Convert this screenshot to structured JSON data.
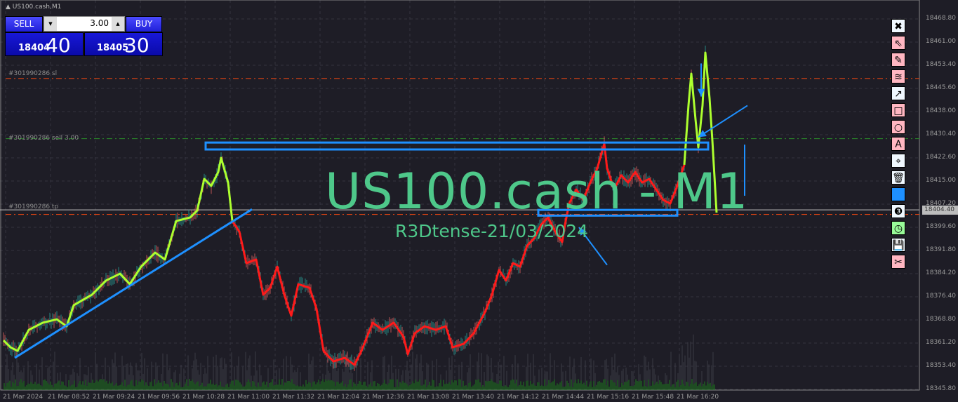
{
  "window": {
    "title": "US100.cash,M1"
  },
  "trade_panel": {
    "sell_label": "SELL",
    "buy_label": "BUY",
    "lot_value": "3.00",
    "bid_small": "18404",
    "bid_big": "40",
    "ask_small": "18405",
    "ask_big": "30"
  },
  "order_lines": {
    "sl_label": "#301990286 sl",
    "sell_label": "#301990286 sell 3.00",
    "tp_label": "#301990286 tp"
  },
  "watermark": {
    "symbol": "US100.cash - M1",
    "author": "R3Dtense-21/03/2024"
  },
  "colors": {
    "background": "#1e1d26",
    "bull_line": "#adff2f",
    "bear_line": "#ff1a1a",
    "drawing": "#1e90ff",
    "sl_tp_line": "#ff4a10",
    "entry_line": "#2a8a2a",
    "watermark": "#4ec88a"
  },
  "toolbar": [
    {
      "icon": "close-icon",
      "glyph": "✖",
      "bg": "#f0f8ff"
    },
    {
      "icon": "cursor-icon",
      "glyph": "⇖",
      "bg": "#ffb6c1"
    },
    {
      "icon": "pencil-icon",
      "glyph": "✎",
      "bg": "#ffb6c1"
    },
    {
      "icon": "wave-icon",
      "glyph": "≋",
      "bg": "#ffb6c1"
    },
    {
      "icon": "arrow-icon",
      "glyph": "↗",
      "bg": "#f0f8ff"
    },
    {
      "icon": "rectangle-icon",
      "glyph": "□",
      "bg": "#ffb6c1"
    },
    {
      "icon": "circle-icon",
      "glyph": "○",
      "bg": "#ffb6c1"
    },
    {
      "icon": "text-icon",
      "glyph": "A",
      "bg": "#ffb6c1"
    },
    {
      "icon": "label-icon",
      "glyph": "⌖",
      "bg": "#f0f8ff"
    },
    {
      "icon": "trash-icon",
      "glyph": "🗑",
      "bg": "#f0f8ff"
    },
    {
      "icon": "color-swatch-icon",
      "glyph": "",
      "bg": "#1e90ff"
    },
    {
      "icon": "line-width-icon",
      "glyph": "❸",
      "bg": "#f0f8ff"
    },
    {
      "icon": "clock-icon",
      "glyph": "◷",
      "bg": "#98fb98"
    },
    {
      "icon": "save-icon",
      "glyph": "💾",
      "bg": "#f0f8ff"
    },
    {
      "icon": "scissors-icon",
      "glyph": "✂",
      "bg": "#ffb6c1"
    }
  ],
  "chart_data": {
    "type": "line",
    "symbol": "US100.cash",
    "timeframe": "M1",
    "date": "21 Mar 2024",
    "ylim": [
      18345.8,
      18468.8
    ],
    "grid": true,
    "y_ticks": [
      "18468.80",
      "18461.00",
      "18453.40",
      "18445.60",
      "18438.00",
      "18430.40",
      "18422.60",
      "18415.00",
      "18407.20",
      "18399.60",
      "18391.80",
      "18384.20",
      "18376.40",
      "18368.80",
      "18361.20",
      "18353.40",
      "18345.80"
    ],
    "x_ticks": [
      "21 Mar 2024",
      "21 Mar 08:52",
      "21 Mar 09:24",
      "21 Mar 09:56",
      "21 Mar 10:28",
      "21 Mar 11:00",
      "21 Mar 11:32",
      "21 Mar 12:04",
      "21 Mar 12:36",
      "21 Mar 13:08",
      "21 Mar 13:40",
      "21 Mar 14:12",
      "21 Mar 14:44",
      "21 Mar 15:16",
      "21 Mar 15:48",
      "21 Mar 16:20"
    ],
    "current_bid": "18404.40",
    "current_ask": "18405.30",
    "levels": {
      "sl": 18449.0,
      "entry": 18429.0,
      "tp": 18403.8
    },
    "segments": [
      {
        "color": "#adff2f",
        "from": "08:20",
        "to": "11:03"
      },
      {
        "color": "#ff1a1a",
        "from": "11:03",
        "to": "16:25"
      },
      {
        "color": "#adff2f",
        "from": "16:25",
        "to": "16:48"
      }
    ],
    "points": [
      [
        "08:20",
        18361.9
      ],
      [
        "08:25",
        18359.6
      ],
      [
        "08:30",
        18358.4
      ],
      [
        "08:38",
        18365.4
      ],
      [
        "08:48",
        18367.8
      ],
      [
        "08:58",
        18368.9
      ],
      [
        "09:05",
        18366.6
      ],
      [
        "09:10",
        18373.6
      ],
      [
        "09:23",
        18377.1
      ],
      [
        "09:33",
        18381.8
      ],
      [
        "09:43",
        18384.1
      ],
      [
        "09:50",
        18380.6
      ],
      [
        "09:58",
        18386.4
      ],
      [
        "10:08",
        18391.1
      ],
      [
        "10:15",
        18388.8
      ],
      [
        "10:23",
        18401.6
      ],
      [
        "10:33",
        18402.8
      ],
      [
        "10:38",
        18405.1
      ],
      [
        "10:43",
        18415.6
      ],
      [
        "10:48",
        18413.3
      ],
      [
        "10:53",
        18417.9
      ],
      [
        "10:55",
        18422.6
      ],
      [
        "11:00",
        18414.4
      ],
      [
        "11:03",
        18401.6
      ],
      [
        "11:08",
        18398.1
      ],
      [
        "11:13",
        18387.6
      ],
      [
        "11:20",
        18388.8
      ],
      [
        "11:25",
        18377.1
      ],
      [
        "11:30",
        18379.4
      ],
      [
        "11:35",
        18386.4
      ],
      [
        "11:40",
        18377.1
      ],
      [
        "11:45",
        18370.1
      ],
      [
        "11:50",
        18380.6
      ],
      [
        "11:58",
        18379.4
      ],
      [
        "12:03",
        18372.4
      ],
      [
        "12:08",
        18358.4
      ],
      [
        "12:15",
        18354.9
      ],
      [
        "12:23",
        18356.1
      ],
      [
        "12:30",
        18353.8
      ],
      [
        "12:35",
        18358.4
      ],
      [
        "12:43",
        18367.8
      ],
      [
        "12:50",
        18365.4
      ],
      [
        "12:58",
        18367.8
      ],
      [
        "13:05",
        18363.1
      ],
      [
        "13:08",
        18357.3
      ],
      [
        "13:13",
        18364.3
      ],
      [
        "13:20",
        18366.6
      ],
      [
        "13:28",
        18365.4
      ],
      [
        "13:35",
        18366.6
      ],
      [
        "13:40",
        18359.6
      ],
      [
        "13:48",
        18360.8
      ],
      [
        "13:55",
        18364.3
      ],
      [
        "14:03",
        18371.3
      ],
      [
        "14:08",
        18377.1
      ],
      [
        "14:13",
        18385.3
      ],
      [
        "14:18",
        18381.8
      ],
      [
        "14:23",
        18387.6
      ],
      [
        "14:28",
        18386.4
      ],
      [
        "14:33",
        18393.4
      ],
      [
        "14:38",
        18395.8
      ],
      [
        "14:43",
        18400.4
      ],
      [
        "14:48",
        18402.8
      ],
      [
        "14:53",
        18398.1
      ],
      [
        "14:58",
        18394.6
      ],
      [
        "15:00",
        18400.4
      ],
      [
        "15:03",
        18407.4
      ],
      [
        "15:08",
        18412.1
      ],
      [
        "15:13",
        18408.6
      ],
      [
        "15:18",
        18414.4
      ],
      [
        "15:23",
        18419.1
      ],
      [
        "15:28",
        18427.3
      ],
      [
        "15:30",
        18419.1
      ],
      [
        "15:35",
        18412.1
      ],
      [
        "15:40",
        18416.8
      ],
      [
        "15:45",
        18414.4
      ],
      [
        "15:50",
        18417.9
      ],
      [
        "15:55",
        18414.4
      ],
      [
        "16:00",
        18415.6
      ],
      [
        "16:05",
        18412.1
      ],
      [
        "16:10",
        18408.6
      ],
      [
        "16:15",
        18407.4
      ],
      [
        "16:20",
        18413.3
      ],
      [
        "16:25",
        18420.3
      ],
      [
        "16:28",
        18440.1
      ],
      [
        "16:30",
        18450.6
      ],
      [
        "16:33",
        18435.4
      ],
      [
        "16:35",
        18426.1
      ],
      [
        "16:38",
        18440.1
      ],
      [
        "16:40",
        18457.6
      ],
      [
        "16:43",
        18442.4
      ],
      [
        "16:45",
        18428.4
      ],
      [
        "16:48",
        18404.4
      ]
    ],
    "drawings": {
      "rectangles": [
        {
          "t1": "10:44",
          "t2": "16:42",
          "p1": 18427.7,
          "p2": 18425.4
        },
        {
          "t1": "14:41",
          "t2": "16:20",
          "p1": 18405.3,
          "p2": 18403.4
        }
      ],
      "trendline": {
        "t1": "08:28",
        "p1": 18356.1,
        "t2": "11:17",
        "p2": 18405.5
      },
      "arrows": [
        {
          "t1": "16:37",
          "p1": 18454.0,
          "t2": "16:37",
          "p2": 18443.0
        },
        {
          "t1": "17:10",
          "p1": 18440.0,
          "t2": "16:35",
          "p2": 18429.5
        },
        {
          "t1": "15:30",
          "p1": 18387.0,
          "t2": "15:10",
          "p2": 18399.5
        }
      ],
      "vline": {
        "t": "17:08",
        "p1": 18427.0,
        "p2": 18410.0
      }
    }
  }
}
